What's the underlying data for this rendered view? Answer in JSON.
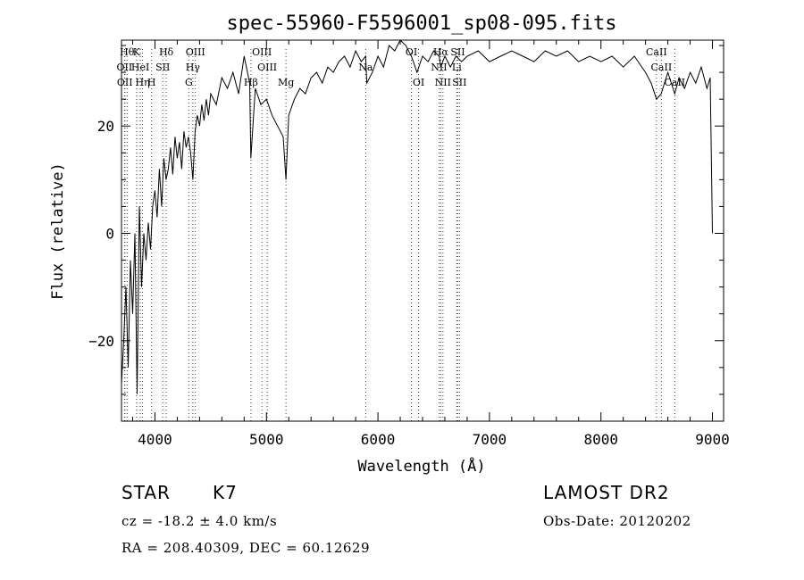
{
  "chart_data": {
    "type": "line",
    "title": "spec-55960-F5596001_sp08-095.fits",
    "xlabel": "Wavelength (Å)",
    "ylabel": "Flux (relative)",
    "xlim": [
      3700,
      9100
    ],
    "ylim": [
      -35,
      36
    ],
    "x_ticks": [
      4000,
      5000,
      6000,
      7000,
      8000,
      9000
    ],
    "y_ticks": [
      -20,
      0,
      20
    ],
    "grid": false,
    "line_color": "#000000",
    "marker_line_color": "#cc0000",
    "series": [
      {
        "x": [
          3700,
          3720,
          3740,
          3760,
          3780,
          3800,
          3820,
          3840,
          3860,
          3880,
          3900,
          3920,
          3940,
          3960,
          3980,
          4000,
          4020,
          4040,
          4060,
          4080,
          4100,
          4120,
          4140,
          4160,
          4180,
          4200,
          4220,
          4240,
          4260,
          4280,
          4300,
          4320,
          4340,
          4360,
          4380,
          4400,
          4420,
          4440,
          4460,
          4480,
          4500,
          4550,
          4600,
          4650,
          4700,
          4750,
          4800,
          4850,
          4860,
          4900,
          4950,
          5000,
          5050,
          5100,
          5150,
          5175,
          5200,
          5250,
          5300,
          5350,
          5400,
          5450,
          5500,
          5550,
          5600,
          5650,
          5700,
          5750,
          5800,
          5850,
          5890,
          5900,
          5950,
          6000,
          6050,
          6100,
          6150,
          6200,
          6250,
          6300,
          6350,
          6400,
          6450,
          6500,
          6550,
          6563,
          6600,
          6650,
          6700,
          6750,
          6800,
          6900,
          7000,
          7100,
          7200,
          7300,
          7400,
          7500,
          7600,
          7700,
          7800,
          7900,
          8000,
          8100,
          8200,
          8300,
          8400,
          8450,
          8498,
          8540,
          8600,
          8662,
          8700,
          8750,
          8800,
          8850,
          8900,
          8950,
          8980,
          9000
        ],
        "y": [
          -28,
          -20,
          -10,
          -25,
          -5,
          -15,
          0,
          -30,
          5,
          -10,
          0,
          -5,
          2,
          -3,
          5,
          8,
          3,
          12,
          5,
          14,
          10,
          12,
          16,
          11,
          18,
          14,
          17,
          12,
          19,
          16,
          18,
          15,
          10,
          19,
          22,
          20,
          24,
          21,
          25,
          22,
          26,
          24,
          29,
          27,
          30,
          26,
          33,
          28,
          14,
          27,
          24,
          25,
          22,
          20,
          18,
          10,
          22,
          25,
          27,
          26,
          29,
          30,
          28,
          31,
          30,
          32,
          33,
          31,
          34,
          32,
          33,
          28,
          30,
          33,
          31,
          35,
          34,
          36,
          35,
          33,
          30,
          33,
          32,
          34,
          33,
          31,
          33,
          31,
          33,
          32,
          33,
          34,
          32,
          33,
          34,
          33,
          32,
          34,
          33,
          34,
          32,
          33,
          32,
          33,
          31,
          33,
          30,
          28,
          25,
          26,
          30,
          26,
          29,
          27,
          30,
          28,
          31,
          27,
          29,
          0
        ]
      }
    ],
    "line_markers": [
      {
        "x": 3750,
        "row": 1,
        "label": "Hθ"
      },
      {
        "x": 3835,
        "row": 1,
        "label": "K"
      },
      {
        "x": 4101,
        "row": 1,
        "label": "Hδ"
      },
      {
        "x": 4363,
        "row": 1,
        "label": "OIII"
      },
      {
        "x": 4959,
        "row": 1,
        "label": "OIII"
      },
      {
        "x": 6300,
        "row": 1,
        "label": "OI"
      },
      {
        "x": 6563,
        "row": 1,
        "label": "Hα"
      },
      {
        "x": 6716,
        "row": 1,
        "label": "SII"
      },
      {
        "x": 8498,
        "row": 1,
        "label": "CaII"
      },
      {
        "x": 3727,
        "row": 2,
        "label": "OII"
      },
      {
        "x": 3869,
        "row": 2,
        "label": "HeI"
      },
      {
        "x": 4070,
        "row": 2,
        "label": "SII"
      },
      {
        "x": 4340,
        "row": 2,
        "label": "Hγ"
      },
      {
        "x": 5007,
        "row": 2,
        "label": "OIII"
      },
      {
        "x": 5890,
        "row": 2,
        "label": "Na"
      },
      {
        "x": 6548,
        "row": 2,
        "label": "NII"
      },
      {
        "x": 6707,
        "row": 2,
        "label": "Li"
      },
      {
        "x": 8542,
        "row": 2,
        "label": "CaII"
      },
      {
        "x": 3730,
        "row": 3,
        "label": "OII"
      },
      {
        "x": 3889,
        "row": 3,
        "label": "Hη"
      },
      {
        "x": 3970,
        "row": 3,
        "label": "H"
      },
      {
        "x": 4304,
        "row": 3,
        "label": "G"
      },
      {
        "x": 4861,
        "row": 3,
        "label": "Hβ"
      },
      {
        "x": 5175,
        "row": 3,
        "label": "Mg"
      },
      {
        "x": 6364,
        "row": 3,
        "label": "OI"
      },
      {
        "x": 6583,
        "row": 3,
        "label": "NII"
      },
      {
        "x": 6731,
        "row": 3,
        "label": "SII"
      },
      {
        "x": 8662,
        "row": 3,
        "label": "CaII"
      }
    ]
  },
  "info": {
    "object_class": "STAR",
    "subclass": "K7",
    "redshift": "cz = -18.2 ± 4.0 km/s",
    "coords": "RA = 208.40309, DEC =  60.12629",
    "survey": "LAMOST  DR2",
    "obs_date": "Obs-Date: 20120202"
  }
}
